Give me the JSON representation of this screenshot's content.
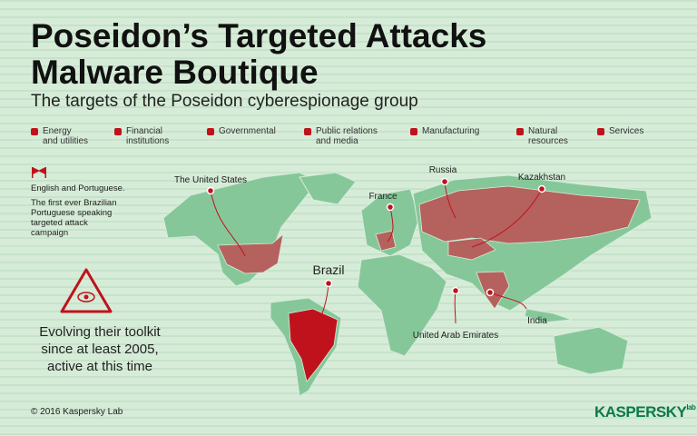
{
  "header": {
    "title": [
      "Poseidon’s Targeted Attacks",
      "Malware Boutique"
    ],
    "subtitle": "The targets of the Poseidon cyberespionage group"
  },
  "legend": [
    "Energy\nand utilities",
    "Financial\ninstitutions",
    "Governmental",
    "Public relations\nand media",
    "Manufacturing",
    "Natural\nresources",
    "Services"
  ],
  "note": {
    "languages": "English and Portuguese.",
    "description": "The first ever Brazilian\nPortuguese speaking\ntargeted attack\ncampaign"
  },
  "toolkit": "Evolving their toolkit\nsince at least 2005,\nactive at this time",
  "countries": [
    "The United States",
    "France",
    "Russia",
    "Kazakhstan",
    "Brazil",
    "United Arab Emirates",
    "India"
  ],
  "footer": {
    "copyright": "© 2016 Kaspersky Lab",
    "logo": "KASPERSKY",
    "logo_suffix": "lab"
  }
}
